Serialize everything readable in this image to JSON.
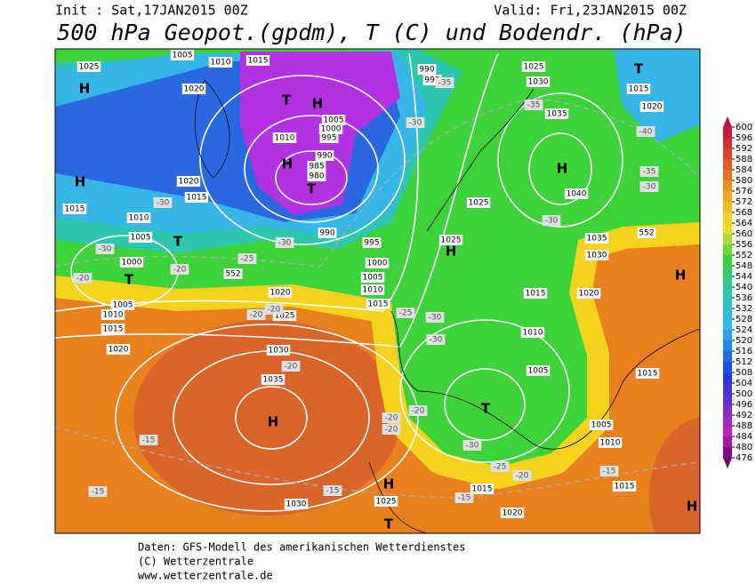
{
  "header": {
    "init": "Init : Sat,17JAN2015 00Z",
    "valid": "Valid: Fri,23JAN2015 00Z",
    "title": "500 hPa Geopot.(gpdm), T (C) und Bodendr. (hPa)"
  },
  "colorbar": {
    "ticks": [
      600,
      596,
      592,
      588,
      584,
      580,
      576,
      572,
      568,
      564,
      560,
      556,
      552,
      548,
      544,
      540,
      536,
      532,
      528,
      524,
      520,
      516,
      512,
      508,
      504,
      500,
      496,
      492,
      488,
      484,
      480,
      476
    ]
  },
  "map": {
    "labels": [
      "H",
      "H",
      "H",
      "H",
      "T",
      "T",
      "H",
      "H",
      "T",
      "T",
      "T",
      "H",
      "T",
      "H",
      "H",
      "H",
      "T",
      "1025",
      "1020",
      "1015",
      "1010",
      "1005",
      "990",
      "995",
      "1025",
      "1030",
      "1035",
      "1040",
      "1015",
      "1020",
      "1010",
      "1005",
      "1000",
      "995",
      "990",
      "985",
      "980",
      "990",
      "995",
      "1000",
      "1005",
      "1010",
      "1015",
      "1020",
      "1025",
      "1020",
      "1015",
      "1015",
      "1010",
      "1005",
      "1000",
      "1005",
      "1010",
      "1015",
      "1020",
      "1030",
      "1035",
      "1030",
      "1025",
      "1015",
      "1020",
      "1015",
      "1010",
      "1005",
      "1005",
      "1010",
      "1015",
      "1020",
      "1030",
      "1035",
      "1025",
      "1025",
      "1015",
      "-35",
      "-40",
      "-35",
      "-30",
      "-30",
      "-30",
      "-35",
      "-30",
      "-30",
      "-20",
      "-20",
      "-25",
      "-30",
      "-20",
      "-20",
      "-25",
      "-30",
      "-30",
      "-20",
      "-20",
      "-20",
      "-20",
      "-30",
      "-25",
      "-20",
      "-15",
      "-15",
      "-15",
      "-15",
      "-15",
      "552",
      "552"
    ]
  },
  "footer": {
    "lines": [
      "Daten: GFS-Modell des amerikanischen Wetterdienstes",
      "(C) Wetterzentrale",
      "www.wetterzentrale.de"
    ]
  }
}
